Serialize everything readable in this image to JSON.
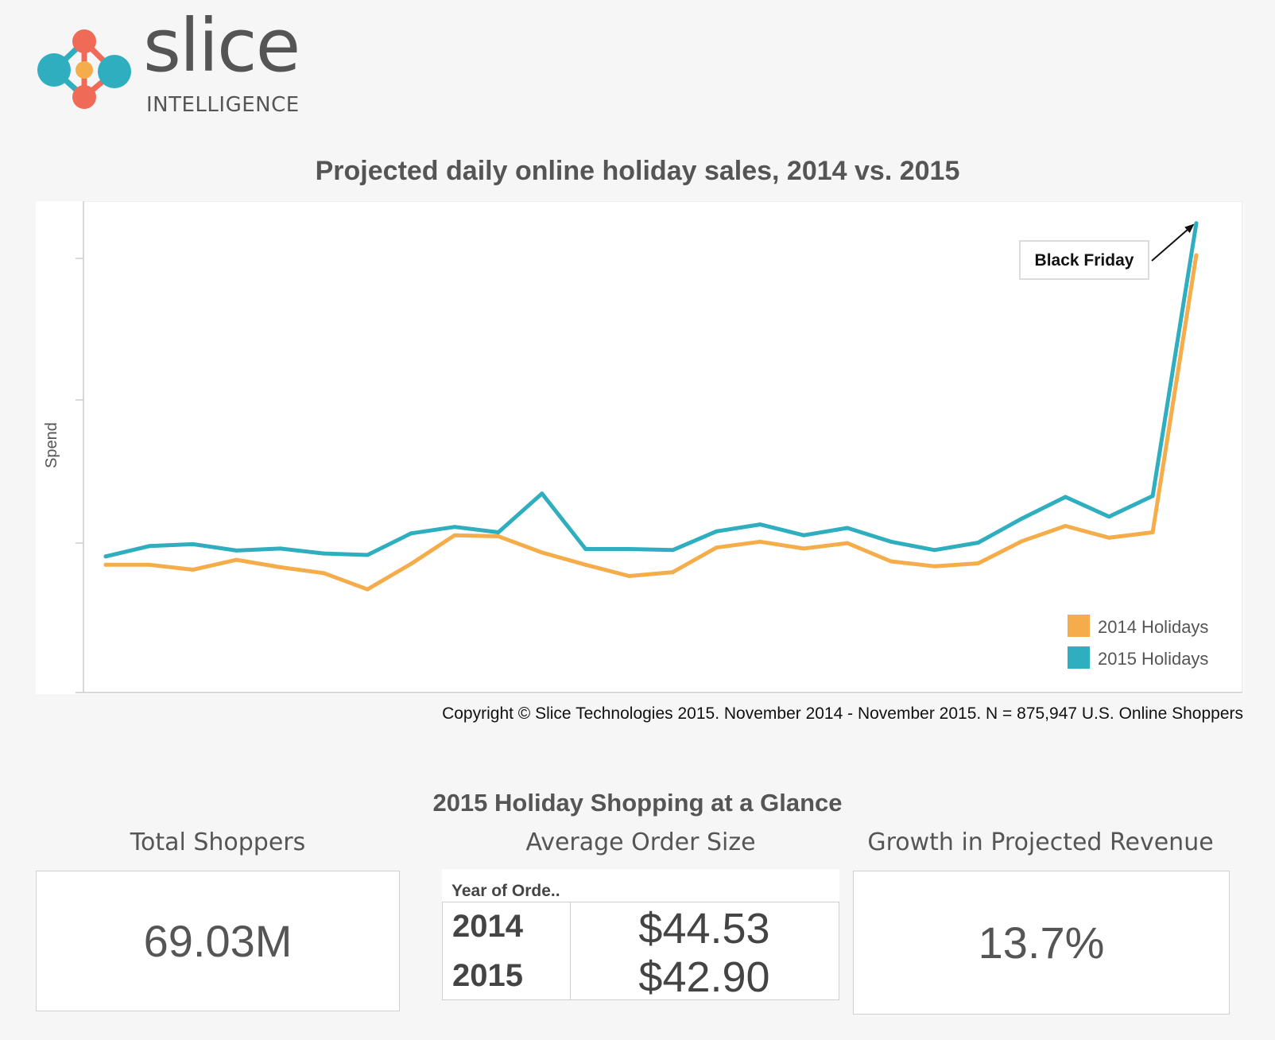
{
  "brand": {
    "name": "slice",
    "subtitle": "INTELLIGENCE",
    "colors": {
      "coral": "#ef6a57",
      "teal": "#2eaebf",
      "orange": "#f5ad4b"
    }
  },
  "chart_data": {
    "type": "line",
    "title": "Projected daily online holiday sales, 2014 vs. 2015",
    "xlabel": "",
    "ylabel": "Spend",
    "ylim": [
      0,
      100
    ],
    "y_tick_labels_shown": false,
    "legend_position": "bottom-right",
    "x": [
      1,
      2,
      3,
      4,
      5,
      6,
      7,
      8,
      9,
      10,
      11,
      12,
      13,
      14,
      15,
      16,
      17,
      18,
      19,
      20,
      21,
      22,
      23,
      24,
      25,
      26
    ],
    "series": [
      {
        "name": "2014 Holidays",
        "color": "#f5ad4b",
        "values": [
          26,
          26,
          25,
          27,
          25.5,
          24.3,
          21,
          26.2,
          32,
          31.8,
          28.5,
          26,
          23.7,
          24.5,
          29.5,
          30.7,
          29.3,
          30.4,
          26.7,
          25.7,
          26.3,
          30.8,
          33.9,
          31.5,
          32.6,
          89
        ]
      },
      {
        "name": "2015 Holidays",
        "color": "#2eaebf",
        "values": [
          27.7,
          29.8,
          30.2,
          28.9,
          29.3,
          28.3,
          28,
          32.4,
          33.7,
          32.6,
          40.5,
          29.2,
          29.2,
          29,
          32.8,
          34.2,
          32,
          33.5,
          30.7,
          29,
          30.5,
          35.4,
          39.8,
          35.8,
          40,
          95.5
        ]
      }
    ],
    "annotations": [
      {
        "text": "Black Friday",
        "target_series": "2015 Holidays",
        "target_index": 25
      }
    ]
  },
  "copyright": "Copyright © Slice Technologies 2015. November 2014 - November 2015. N = 875,947 U.S. Online Shoppers",
  "glance": {
    "title": "2015 Holiday Shopping at a Glance",
    "total_shoppers": {
      "label": "Total Shoppers",
      "value": "69.03M"
    },
    "average_order_size": {
      "label": "Average Order Size",
      "column_header": "Year of Orde..",
      "rows": [
        {
          "year": "2014",
          "value": "$44.53"
        },
        {
          "year": "2015",
          "value": "$42.90"
        }
      ]
    },
    "growth": {
      "label": "Growth in Projected Revenue",
      "value": "13.7%"
    }
  }
}
